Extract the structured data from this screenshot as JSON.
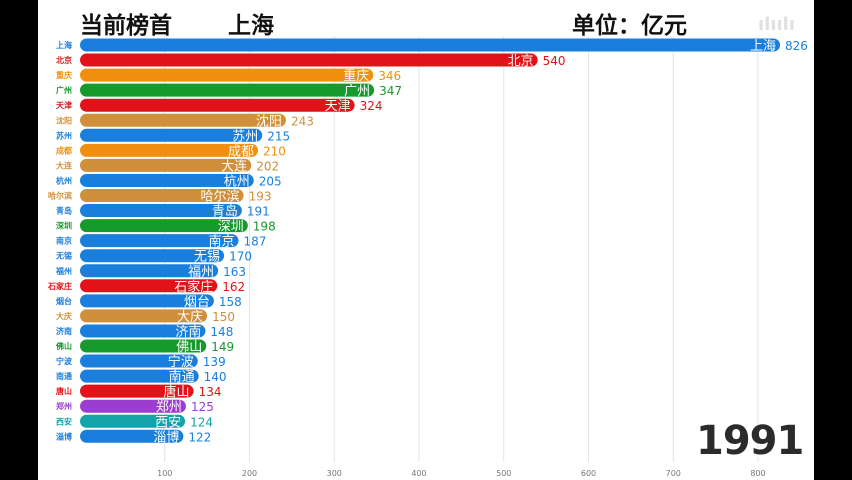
{
  "header": {
    "leader_label": "当前榜首",
    "leader_city": "上海",
    "unit": "单位：亿元",
    "year": "1991"
  },
  "colors": {
    "blue": "#1a7fdc",
    "red": "#e11218",
    "orange": "#f0900e",
    "green": "#169a2c",
    "tan": "#d08f3a",
    "purple": "#9b3dd0",
    "teal": "#13a3a8"
  },
  "chart_data": {
    "type": "bar",
    "orientation": "horizontal",
    "title": "",
    "xlabel": "",
    "ylabel": "",
    "xlim": [
      0,
      826
    ],
    "xticks": [
      100,
      200,
      300,
      400,
      500,
      600,
      700,
      800
    ],
    "grid": true,
    "bars": [
      {
        "city": "上海",
        "value": 826,
        "color": "blue"
      },
      {
        "city": "北京",
        "value": 540,
        "color": "red"
      },
      {
        "city": "重庆",
        "value": 346,
        "color": "orange"
      },
      {
        "city": "广州",
        "value": 347,
        "color": "green"
      },
      {
        "city": "天津",
        "value": 324,
        "color": "red"
      },
      {
        "city": "沈阳",
        "value": 243,
        "color": "tan"
      },
      {
        "city": "苏州",
        "value": 215,
        "color": "blue"
      },
      {
        "city": "成都",
        "value": 210,
        "color": "orange"
      },
      {
        "city": "大连",
        "value": 202,
        "color": "tan"
      },
      {
        "city": "杭州",
        "value": 205,
        "color": "blue"
      },
      {
        "city": "哈尔滨",
        "value": 193,
        "color": "tan"
      },
      {
        "city": "青岛",
        "value": 191,
        "color": "blue"
      },
      {
        "city": "深圳",
        "value": 198,
        "color": "green"
      },
      {
        "city": "南京",
        "value": 187,
        "color": "blue"
      },
      {
        "city": "无锡",
        "value": 170,
        "color": "blue"
      },
      {
        "city": "福州",
        "value": 163,
        "color": "blue"
      },
      {
        "city": "石家庄",
        "value": 162,
        "color": "red"
      },
      {
        "city": "烟台",
        "value": 158,
        "color": "blue"
      },
      {
        "city": "大庆",
        "value": 150,
        "color": "tan"
      },
      {
        "city": "济南",
        "value": 148,
        "color": "blue"
      },
      {
        "city": "佛山",
        "value": 149,
        "color": "green"
      },
      {
        "city": "宁波",
        "value": 139,
        "color": "blue"
      },
      {
        "city": "南通",
        "value": 140,
        "color": "blue"
      },
      {
        "city": "唐山",
        "value": 134,
        "color": "red"
      },
      {
        "city": "郑州",
        "value": 125,
        "color": "purple"
      },
      {
        "city": "西安",
        "value": 124,
        "color": "teal"
      },
      {
        "city": "淄博",
        "value": 122,
        "color": "blue"
      }
    ]
  }
}
